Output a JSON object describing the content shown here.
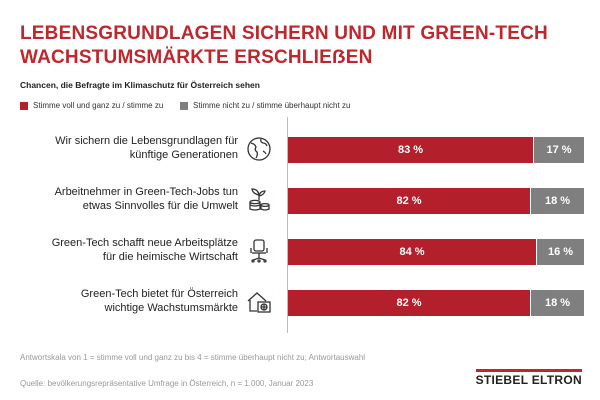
{
  "header": {
    "title_line1": "LEBENSGRUNDLAGEN SICHERN UND MIT GREEN-TECH",
    "title_line2": "WACHSTUMSMÄRKTE ERSCHLIEẞEN",
    "subtitle": "Chancen, die Befragte im Klimaschutz für Österreich sehen"
  },
  "colors": {
    "agree": "#b41f2c",
    "disagree": "#7f7f7f",
    "accent": "#c0272d"
  },
  "chart_data": {
    "type": "bar",
    "orientation": "horizontal-stacked-100",
    "title": "Chancen, die Befragte im Klimaschutz für Österreich sehen",
    "categories": [
      {
        "line1": "Wir sichern die Lebensgrundlagen für",
        "line2": "künftige Generationen",
        "icon": "globe-icon"
      },
      {
        "line1": "Arbeitnehmer in Green-Tech-Jobs tun",
        "line2": "etwas Sinnvolles für die Umwelt",
        "icon": "plant-coins-icon"
      },
      {
        "line1": "Green-Tech schafft neue Arbeitsplätze",
        "line2": "für die heimische Wirtschaft",
        "icon": "office-chair-icon"
      },
      {
        "line1": "Green-Tech bietet für Österreich",
        "line2": "wichtige Wachstumsmärkte",
        "icon": "house-heatpump-icon"
      }
    ],
    "series": [
      {
        "name": "Stimme voll und ganz zu / stimme zu",
        "values": [
          83,
          82,
          84,
          82
        ],
        "labels": [
          "83 %",
          "82 %",
          "84 %",
          "82 %"
        ]
      },
      {
        "name": "Stimme nicht zu / stimme überhaupt nicht zu",
        "values": [
          17,
          18,
          16,
          18
        ],
        "labels": [
          "17 %",
          "18 %",
          "16 %",
          "18 %"
        ]
      }
    ],
    "xlim": [
      0,
      100
    ],
    "legend": "top-left"
  },
  "footer": {
    "note": "Antwortskala von 1 = stimme voll und ganz zu bis 4 = stimme überhaupt nicht zu; Antwortauswahl",
    "source": "Quelle: bevölkerungsrepräsentative Umfrage in Österreich, n = 1.000, Januar 2023",
    "brand": "STIEBEL ELTRON"
  }
}
